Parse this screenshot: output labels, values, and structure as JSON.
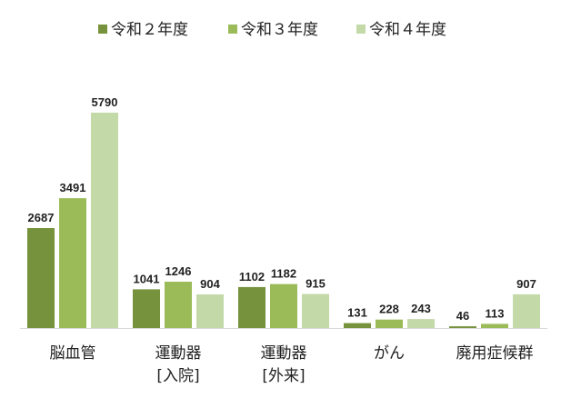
{
  "chart_data": {
    "type": "bar",
    "categories": [
      [
        "脳血管"
      ],
      [
        "運動器",
        "[入院]"
      ],
      [
        "運動器",
        "[外来]"
      ],
      [
        "がん"
      ],
      [
        "廃用症候群"
      ]
    ],
    "series": [
      {
        "name": "令和２年度",
        "color": "#76923c",
        "values": [
          2687,
          1041,
          1102,
          131,
          46
        ]
      },
      {
        "name": "令和３年度",
        "color": "#9bbb59",
        "values": [
          3491,
          1246,
          1182,
          228,
          113
        ]
      },
      {
        "name": "令和４年度",
        "color": "#c4d9a8",
        "values": [
          5790,
          904,
          915,
          243,
          907
        ]
      }
    ],
    "ylim": [
      0,
      5790
    ],
    "grid": false,
    "legend": "top-center",
    "title": "",
    "xlabel": "",
    "ylabel": ""
  }
}
